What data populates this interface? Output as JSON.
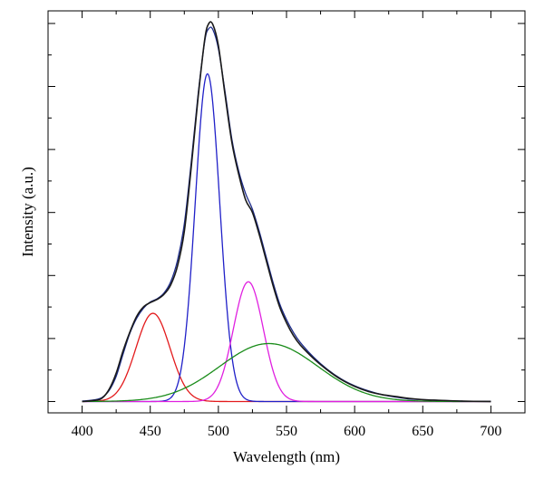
{
  "chart_data": {
    "type": "line",
    "title": "",
    "xlabel": "Wavelength (nm)",
    "ylabel": "Intensity (a.u.)",
    "xlim": [
      375,
      725
    ],
    "ylim": [
      -0.018,
      0.62
    ],
    "x_ticks": [
      400,
      450,
      500,
      550,
      600,
      650,
      700
    ],
    "y_ticks": [
      0,
      0.1,
      0.2,
      0.3,
      0.4,
      0.5,
      0.6
    ],
    "y_tick_labels_shown": false,
    "grid": false,
    "legend": "none",
    "series": [
      {
        "color": "#1a1a1a",
        "role": "measured spectrum",
        "points": [
          [
            400,
            0
          ],
          [
            410,
            0.002
          ],
          [
            415,
            0.006
          ],
          [
            420,
            0.02
          ],
          [
            425,
            0.045
          ],
          [
            430,
            0.08
          ],
          [
            435,
            0.11
          ],
          [
            440,
            0.135
          ],
          [
            445,
            0.15
          ],
          [
            450,
            0.157
          ],
          [
            455,
            0.162
          ],
          [
            460,
            0.17
          ],
          [
            465,
            0.185
          ],
          [
            470,
            0.215
          ],
          [
            475,
            0.27
          ],
          [
            480,
            0.37
          ],
          [
            485,
            0.48
          ],
          [
            490,
            0.575
          ],
          [
            493,
            0.6
          ],
          [
            496,
            0.598
          ],
          [
            500,
            0.565
          ],
          [
            505,
            0.485
          ],
          [
            510,
            0.41
          ],
          [
            515,
            0.36
          ],
          [
            520,
            0.32
          ],
          [
            525,
            0.3
          ],
          [
            530,
            0.265
          ],
          [
            535,
            0.225
          ],
          [
            540,
            0.185
          ],
          [
            545,
            0.15
          ],
          [
            550,
            0.125
          ],
          [
            555,
            0.105
          ],
          [
            560,
            0.09
          ],
          [
            570,
            0.068
          ],
          [
            580,
            0.05
          ],
          [
            590,
            0.035
          ],
          [
            600,
            0.024
          ],
          [
            610,
            0.016
          ],
          [
            620,
            0.011
          ],
          [
            630,
            0.008
          ],
          [
            640,
            0.005
          ],
          [
            650,
            0.003
          ],
          [
            660,
            0.002
          ],
          [
            680,
            0.0006
          ],
          [
            700,
            0
          ]
        ]
      },
      {
        "color": "#1b2a8a",
        "role": "fitted sum",
        "points": [
          [
            400,
            0.0006
          ],
          [
            410,
            0.003
          ],
          [
            415,
            0.007
          ],
          [
            420,
            0.018
          ],
          [
            425,
            0.04
          ],
          [
            430,
            0.075
          ],
          [
            435,
            0.108
          ],
          [
            440,
            0.132
          ],
          [
            445,
            0.148
          ],
          [
            450,
            0.158
          ],
          [
            455,
            0.163
          ],
          [
            460,
            0.172
          ],
          [
            465,
            0.19
          ],
          [
            470,
            0.224
          ],
          [
            475,
            0.282
          ],
          [
            480,
            0.378
          ],
          [
            485,
            0.485
          ],
          [
            490,
            0.572
          ],
          [
            493,
            0.592
          ],
          [
            496,
            0.59
          ],
          [
            500,
            0.56
          ],
          [
            505,
            0.49
          ],
          [
            510,
            0.415
          ],
          [
            515,
            0.365
          ],
          [
            520,
            0.33
          ],
          [
            525,
            0.305
          ],
          [
            530,
            0.27
          ],
          [
            535,
            0.23
          ],
          [
            540,
            0.19
          ],
          [
            545,
            0.155
          ],
          [
            550,
            0.13
          ],
          [
            555,
            0.11
          ],
          [
            560,
            0.094
          ],
          [
            570,
            0.07
          ],
          [
            580,
            0.051
          ],
          [
            590,
            0.036
          ],
          [
            600,
            0.025
          ],
          [
            610,
            0.017
          ],
          [
            620,
            0.011
          ],
          [
            630,
            0.007
          ],
          [
            640,
            0.004
          ],
          [
            650,
            0.003
          ],
          [
            660,
            0.002
          ],
          [
            680,
            0.0005
          ],
          [
            700,
            0.0001
          ]
        ]
      },
      {
        "color": "#e31a1c",
        "role": "fitted peak 1",
        "peak": {
          "center": 452,
          "height": 0.14,
          "sigma": 12.5
        }
      },
      {
        "color": "#2020c8",
        "role": "fitted peak 2",
        "peak": {
          "center": 492,
          "height": 0.52,
          "sigma": 9
        }
      },
      {
        "color": "#e020e0",
        "role": "fitted peak 3",
        "peak": {
          "center": 522,
          "height": 0.19,
          "sigma": 11
        }
      },
      {
        "color": "#1a8c1a",
        "role": "fitted peak 4",
        "peak": {
          "center": 537,
          "height": 0.092,
          "sigma": 36
        }
      }
    ]
  }
}
